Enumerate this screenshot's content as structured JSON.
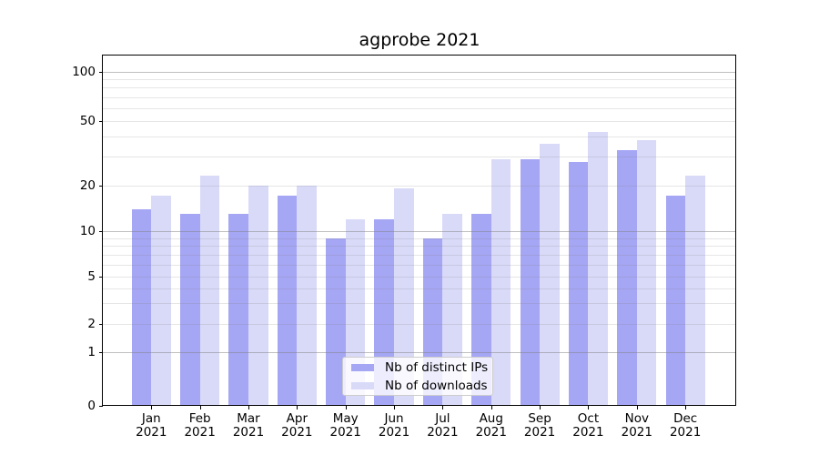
{
  "chart_data": {
    "type": "bar",
    "title": "agprobe 2021",
    "categories": [
      "Jan",
      "Feb",
      "Mar",
      "Apr",
      "May",
      "Jun",
      "Jul",
      "Aug",
      "Sep",
      "Oct",
      "Nov",
      "Dec"
    ],
    "category_year": "2021",
    "series": [
      {
        "name": "Nb of distinct IPs",
        "color": "#a5a6f4",
        "values": [
          14,
          13,
          13,
          17,
          9,
          12,
          9,
          13,
          29,
          28,
          33,
          17
        ]
      },
      {
        "name": "Nb of downloads",
        "color": "#d9daf8",
        "values": [
          17,
          23,
          20,
          20,
          12,
          19,
          13,
          29,
          36,
          43,
          38,
          23
        ]
      }
    ],
    "yscale": "log-like with zero baseline",
    "ylim": [
      0,
      125
    ],
    "y_tick_labels": [
      "100",
      "50",
      "20",
      "10",
      "5",
      "2",
      "1",
      "0"
    ],
    "y_tick_values": [
      100,
      50,
      20,
      10,
      5,
      2,
      1,
      0
    ],
    "grid": {
      "major_values": [
        1,
        10,
        100
      ],
      "minor_values": [
        2,
        3,
        4,
        5,
        6,
        7,
        8,
        9,
        20,
        30,
        40,
        50,
        60,
        70,
        80,
        90
      ],
      "major_color": "rgba(128,128,128,0.5)",
      "minor_color": "rgba(128,128,128,0.2)"
    },
    "legend": {
      "position": "lower-center"
    }
  }
}
